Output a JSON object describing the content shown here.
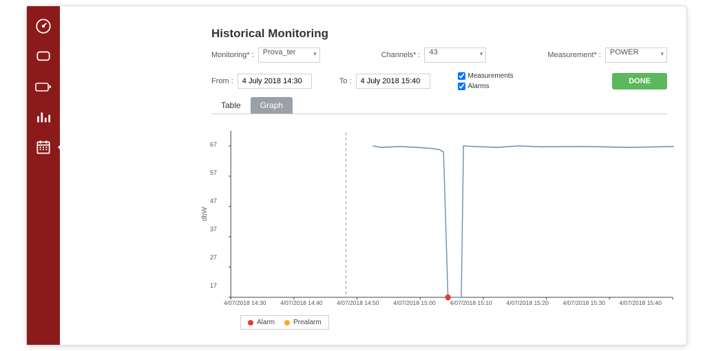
{
  "page": {
    "title": "Historical Monitoring"
  },
  "sidebar": {
    "items": [
      {
        "name": "gauge-icon"
      },
      {
        "name": "monitor-icon"
      },
      {
        "name": "touch-icon"
      },
      {
        "name": "bars-icon"
      },
      {
        "name": "calendar-icon",
        "active": true
      }
    ]
  },
  "filters": {
    "monitoring_label": "Monitoring* :",
    "monitoring_value": "Prova_ter",
    "channels_label": "Channels* :",
    "channels_value": "43",
    "measurement_label": "Measurement* :",
    "measurement_value": "POWER",
    "from_label": "From :",
    "from_value": "4 July 2018 14:30",
    "to_label": "To :",
    "to_value": "4 July 2018 15:40",
    "checkbox_measurements": "Measurements",
    "checkbox_alarms": "Alarms",
    "done_label": "DONE"
  },
  "tabs": {
    "table": "Table",
    "graph": "Graph"
  },
  "chart": {
    "type": "line",
    "y_axis_label": "dbW",
    "ylim": [
      17,
      67
    ],
    "y_ticks": [
      17,
      27,
      37,
      47,
      57,
      67
    ],
    "x_labels": [
      "4/07/2018 14:30",
      "4/07/2018 14:40",
      "4/07/2018 14:50",
      "4/07/2018 15:00",
      "4/07/2018 15:10",
      "4/07/2018 15:20",
      "4/07/2018 15:30",
      "4/07/2018 15:40"
    ],
    "series": {
      "color": "#6f8fb3",
      "stroke_width": 1.4,
      "points": [
        {
          "t": 32,
          "v": 67
        },
        {
          "t": 34,
          "v": 66.5
        },
        {
          "t": 38,
          "v": 66.8
        },
        {
          "t": 42,
          "v": 66.5
        },
        {
          "t": 45,
          "v": 66.2
        },
        {
          "t": 47,
          "v": 65.8
        },
        {
          "t": 48,
          "v": 65
        },
        {
          "t": 49,
          "v": 17
        },
        {
          "t": 52,
          "v": 17
        },
        {
          "t": 52.5,
          "v": 67
        },
        {
          "t": 55,
          "v": 66.8
        },
        {
          "t": 60,
          "v": 66.5
        },
        {
          "t": 65,
          "v": 67
        },
        {
          "t": 70,
          "v": 66.7
        },
        {
          "t": 80,
          "v": 66.8
        },
        {
          "t": 90,
          "v": 66.5
        },
        {
          "t": 100,
          "v": 66.8
        }
      ]
    },
    "vline": {
      "t": 26,
      "color": "#999999",
      "dash": "4,3"
    },
    "alarm_point": {
      "t": 49,
      "v": 17,
      "color": "#e53935",
      "radius": 4
    },
    "axis_color": "#444444",
    "background_color": "#ffffff",
    "legend": {
      "items": [
        {
          "label": "Alarm",
          "color": "#e53935"
        },
        {
          "label": "Prealarm",
          "color": "#ffa726"
        }
      ]
    }
  },
  "colors": {
    "sidebar_bg": "#8b1a1a",
    "done_btn": "#5cb85c",
    "tab_active_bg": "#9aa0a6"
  }
}
